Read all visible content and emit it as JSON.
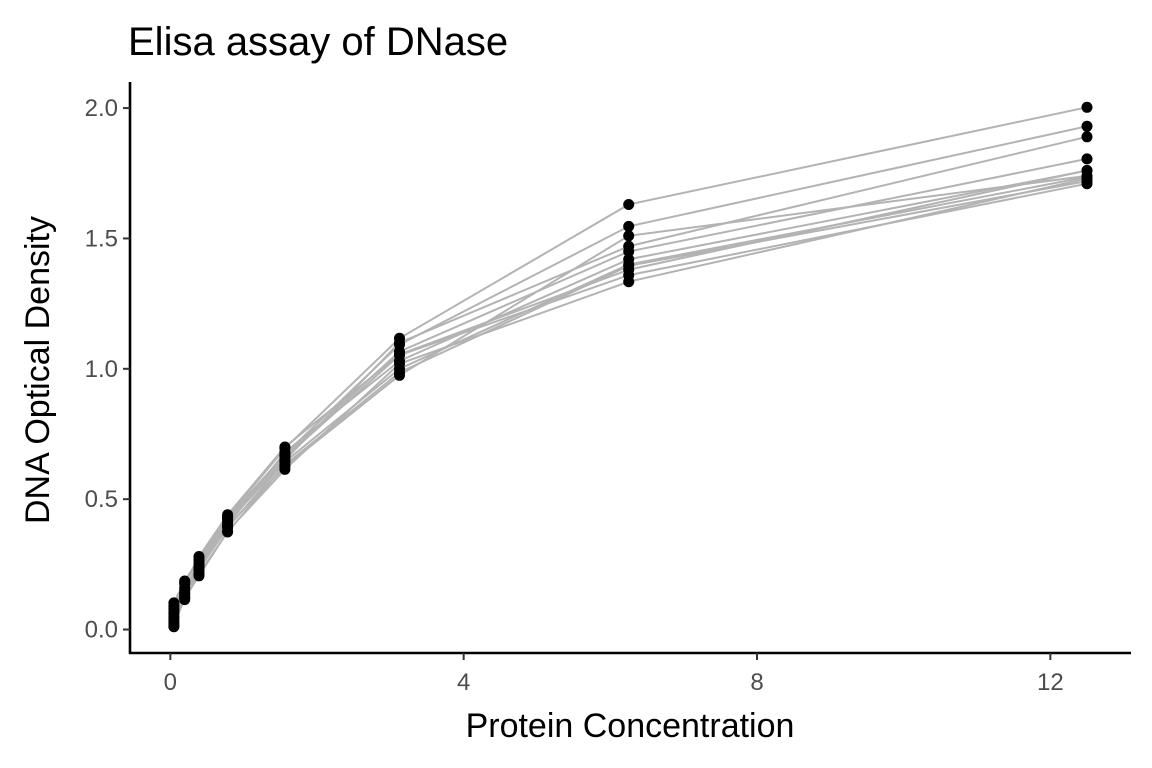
{
  "chart_data": {
    "type": "line",
    "title": "Elisa assay of DNase",
    "xlabel": "Protein Concentration",
    "ylabel": "DNA Optical Density",
    "xlim": [
      -0.55,
      13.1
    ],
    "ylim": [
      -0.09,
      2.1
    ],
    "x_ticks": [
      0,
      4,
      8,
      12
    ],
    "x_tick_labels": [
      "0",
      "4",
      "8",
      "12"
    ],
    "y_ticks": [
      0.0,
      0.5,
      1.0,
      1.5,
      2.0
    ],
    "y_tick_labels": [
      "0.0",
      "0.5",
      "1.0",
      "1.5",
      "2.0"
    ],
    "grid": false,
    "legend": "none",
    "colors": {
      "line": "#b3b3b3",
      "point": "#000000",
      "axis": "#000000",
      "tick_text": "#4d4d4d"
    },
    "x": [
      0.04882812,
      0.1953125,
      0.390625,
      0.78125,
      1.5625,
      3.125,
      6.25,
      12.5
    ],
    "series": [
      {
        "values": [
          0.017,
          0.121,
          0.206,
          0.377,
          0.614,
          1.019,
          1.334,
          1.73
        ]
      },
      {
        "values": [
          0.045,
          0.124,
          0.215,
          0.374,
          0.631,
          0.986,
          1.395,
          1.72
        ]
      },
      {
        "values": [
          0.07,
          0.138,
          0.231,
          0.391,
          0.643,
          1.0,
          1.4,
          1.736
        ]
      },
      {
        "values": [
          0.011,
          0.18,
          0.265,
          0.427,
          0.672,
          1.093,
          1.546,
          1.93
        ]
      },
      {
        "values": [
          0.035,
          0.115,
          0.25,
          0.422,
          0.66,
          1.052,
          1.359,
          1.71
        ]
      },
      {
        "values": [
          0.09,
          0.175,
          0.28,
          0.44,
          0.7,
          1.055,
          1.38,
          1.761
        ]
      },
      {
        "values": [
          0.06,
          0.15,
          0.245,
          0.4,
          0.68,
          1.03,
          1.42,
          1.76
        ]
      },
      {
        "values": [
          0.05,
          0.13,
          0.226,
          0.41,
          0.65,
          1.1,
          1.47,
          1.89
        ]
      },
      {
        "values": [
          0.025,
          0.14,
          0.24,
          0.395,
          0.625,
          0.975,
          1.51,
          1.74
        ]
      },
      {
        "values": [
          0.102,
          0.186,
          0.27,
          0.432,
          0.695,
          1.117,
          1.63,
          2.003
        ]
      },
      {
        "values": [
          0.08,
          0.16,
          0.254,
          0.415,
          0.666,
          1.066,
          1.45,
          1.805
        ]
      }
    ]
  }
}
